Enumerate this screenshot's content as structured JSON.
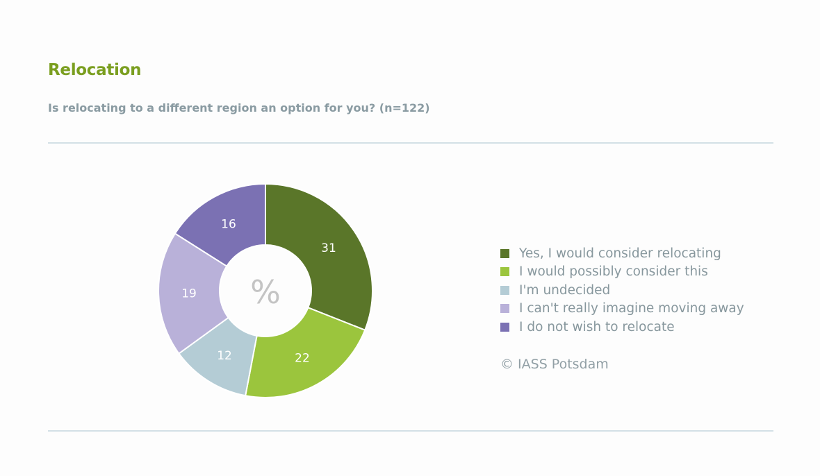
{
  "chart_data": {
    "type": "pie",
    "subtype": "donut",
    "title": "Relocation",
    "subtitle": "Is relocating to a different region an option for you? (n=122)",
    "center_label": "%",
    "unit": "%",
    "categories": [
      "Yes, I would consider relocating",
      "I would possibly consider this",
      "I'm undecided",
      "I can't really imagine moving away",
      "I do not wish to relocate"
    ],
    "values": [
      31,
      22,
      12,
      19,
      16
    ],
    "colors": [
      "#5a7629",
      "#9bc53d",
      "#b4ccd5",
      "#b9b1d9",
      "#7b71b3"
    ],
    "legend_placement": "right"
  },
  "footer": {
    "copyright": "© IASS Potsdam"
  }
}
